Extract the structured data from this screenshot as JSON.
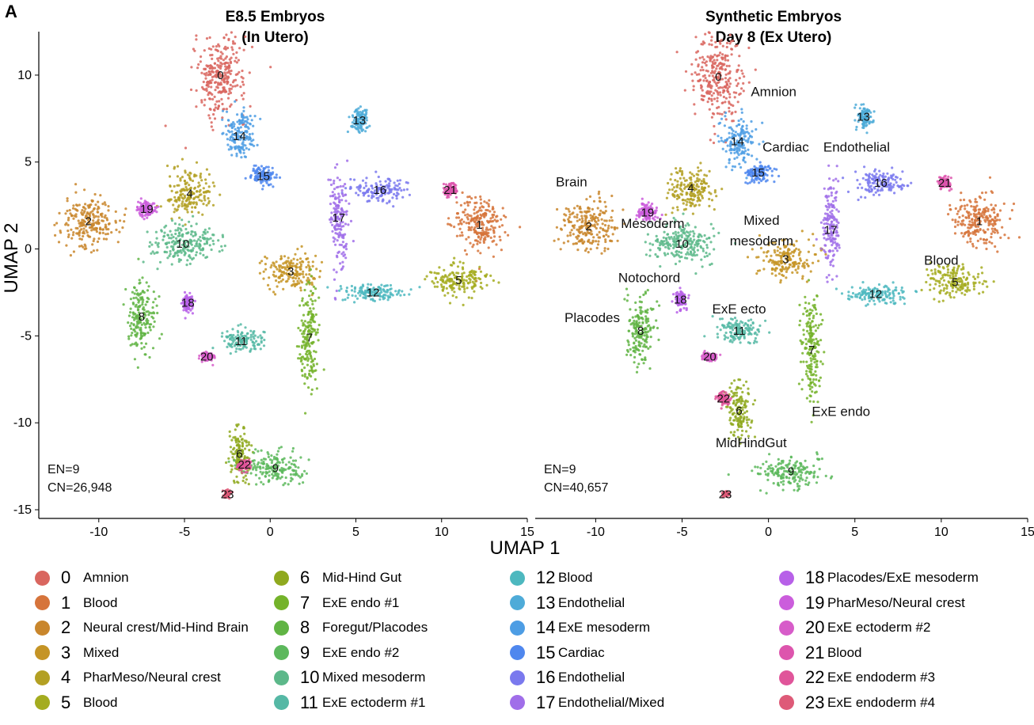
{
  "figure": {
    "panel_letter": "A",
    "shared_xlabel": "UMAP 1",
    "shared_ylabel": "UMAP 2"
  },
  "colors": {
    "0": "#d9665f",
    "1": "#d6743b",
    "2": "#c9862c",
    "3": "#c59425",
    "4": "#b3a023",
    "5": "#a4ac1f",
    "6": "#8fa91f",
    "7": "#74b32a",
    "8": "#60b444",
    "9": "#5cb85c",
    "10": "#5cb88a",
    "11": "#55b8a5",
    "12": "#4db8bf",
    "13": "#4eabd8",
    "14": "#4d9de4",
    "15": "#4f87ee",
    "16": "#7a79ee",
    "17": "#a06ee9",
    "18": "#b760e8",
    "19": "#cb5ddc",
    "20": "#d75cc9",
    "21": "#dd55ad",
    "22": "#e0559a",
    "23": "#de5a78"
  },
  "chart_data": [
    {
      "type": "scatter",
      "title": "E8.5 Embryos",
      "subtitle": "(In Utero)",
      "xlabel": "UMAP 1",
      "ylabel": "UMAP 2",
      "xlim": [
        -13.5,
        15
      ],
      "ylim": [
        -15.5,
        12.5
      ],
      "xticks": [
        -10,
        -5,
        0,
        5,
        10,
        15
      ],
      "yticks": [
        -15,
        -10,
        -5,
        0,
        5,
        10
      ],
      "grid": false,
      "annotations": [
        "EN=9",
        "CN=26,948"
      ],
      "clusters": [
        {
          "id": 0,
          "x": -2.9,
          "y": 10.0
        },
        {
          "id": 1,
          "x": 12.2,
          "y": 1.4
        },
        {
          "id": 2,
          "x": -10.6,
          "y": 1.6
        },
        {
          "id": 3,
          "x": 1.2,
          "y": -1.3
        },
        {
          "id": 4,
          "x": -4.7,
          "y": 3.2
        },
        {
          "id": 5,
          "x": 11.0,
          "y": -1.8
        },
        {
          "id": 6,
          "x": -1.8,
          "y": -11.8
        },
        {
          "id": 7,
          "x": 2.3,
          "y": -5.1
        },
        {
          "id": 8,
          "x": -7.5,
          "y": -3.9
        },
        {
          "id": 9,
          "x": 0.3,
          "y": -12.6
        },
        {
          "id": 10,
          "x": -5.1,
          "y": 0.3
        },
        {
          "id": 11,
          "x": -1.7,
          "y": -5.3
        },
        {
          "id": 12,
          "x": 6.0,
          "y": -2.5
        },
        {
          "id": 13,
          "x": 5.2,
          "y": 7.4
        },
        {
          "id": 14,
          "x": -1.8,
          "y": 6.5
        },
        {
          "id": 15,
          "x": -0.4,
          "y": 4.2
        },
        {
          "id": 16,
          "x": 6.4,
          "y": 3.4
        },
        {
          "id": 17,
          "x": 4.0,
          "y": 1.8
        },
        {
          "id": 18,
          "x": -4.8,
          "y": -3.1
        },
        {
          "id": 19,
          "x": -7.2,
          "y": 2.3
        },
        {
          "id": 20,
          "x": -3.7,
          "y": -6.2
        },
        {
          "id": 21,
          "x": 10.5,
          "y": 3.4
        },
        {
          "id": 22,
          "x": -1.5,
          "y": -12.4
        },
        {
          "id": 23,
          "x": -2.5,
          "y": -14.1
        }
      ],
      "region_labels": []
    },
    {
      "type": "scatter",
      "title": "Synthetic Embryos",
      "subtitle": "Day 8 (Ex Utero)",
      "xlabel": "UMAP 1",
      "ylabel": "UMAP 2",
      "xlim": [
        -13.5,
        15
      ],
      "ylim": [
        -15.5,
        12.5
      ],
      "xticks": [
        -10,
        -5,
        0,
        5,
        10,
        15
      ],
      "yticks": [],
      "grid": false,
      "annotations": [
        "EN=9",
        "CN=40,657"
      ],
      "clusters": [
        {
          "id": 0,
          "x": -2.9,
          "y": 9.9
        },
        {
          "id": 1,
          "x": 12.2,
          "y": 1.6
        },
        {
          "id": 2,
          "x": -10.4,
          "y": 1.3
        },
        {
          "id": 3,
          "x": 1.0,
          "y": -0.6
        },
        {
          "id": 4,
          "x": -4.5,
          "y": 3.5
        },
        {
          "id": 5,
          "x": 10.8,
          "y": -1.9
        },
        {
          "id": 6,
          "x": -1.7,
          "y": -9.3
        },
        {
          "id": 7,
          "x": 2.5,
          "y": -5.8
        },
        {
          "id": 8,
          "x": -7.4,
          "y": -4.7
        },
        {
          "id": 9,
          "x": 1.3,
          "y": -12.8
        },
        {
          "id": 10,
          "x": -5.0,
          "y": 0.3
        },
        {
          "id": 11,
          "x": -1.7,
          "y": -4.7
        },
        {
          "id": 12,
          "x": 6.2,
          "y": -2.6
        },
        {
          "id": 13,
          "x": 5.5,
          "y": 7.6
        },
        {
          "id": 14,
          "x": -1.8,
          "y": 6.2
        },
        {
          "id": 15,
          "x": -0.6,
          "y": 4.4
        },
        {
          "id": 16,
          "x": 6.5,
          "y": 3.8
        },
        {
          "id": 17,
          "x": 3.6,
          "y": 1.1
        },
        {
          "id": 18,
          "x": -5.1,
          "y": -2.9
        },
        {
          "id": 19,
          "x": -7.0,
          "y": 2.1
        },
        {
          "id": 20,
          "x": -3.4,
          "y": -6.2
        },
        {
          "id": 21,
          "x": 10.2,
          "y": 3.8
        },
        {
          "id": 22,
          "x": -2.6,
          "y": -8.6
        },
        {
          "id": 23,
          "x": -2.5,
          "y": -14.1
        }
      ],
      "region_labels": [
        {
          "text": "Amnion",
          "x": 0.3,
          "y": 8.8
        },
        {
          "text": "Cardiac",
          "x": 1.0,
          "y": 5.6
        },
        {
          "text": "Endothelial",
          "x": 5.1,
          "y": 5.6
        },
        {
          "text": "Brain",
          "x": -11.4,
          "y": 3.6
        },
        {
          "text": "Mesoderm",
          "x": -6.7,
          "y": 1.2
        },
        {
          "text": "Mixed",
          "x": -0.4,
          "y": 1.4
        },
        {
          "text": "mesoderm",
          "x": -0.4,
          "y": 0.2
        },
        {
          "text": "Blood",
          "x": 10.0,
          "y": -0.9
        },
        {
          "text": "Notochord",
          "x": -6.9,
          "y": -1.9
        },
        {
          "text": "ExE ecto",
          "x": -1.7,
          "y": -3.7
        },
        {
          "text": "Placodes",
          "x": -10.2,
          "y": -4.2
        },
        {
          "text": "ExE endo",
          "x": 4.2,
          "y": -9.6
        },
        {
          "text": "MidHindGut",
          "x": -1.0,
          "y": -11.4
        }
      ]
    }
  ],
  "legend": [
    [
      {
        "num": "0",
        "label": "Amnion",
        "key": "0"
      },
      {
        "num": "1",
        "label": "Blood",
        "key": "1"
      },
      {
        "num": "2",
        "label": "Neural crest/Mid-Hind Brain",
        "key": "2"
      },
      {
        "num": "3",
        "label": "Mixed",
        "key": "3"
      },
      {
        "num": "4",
        "label": "PharMeso/Neural crest",
        "key": "4"
      },
      {
        "num": "5",
        "label": "Blood",
        "key": "5"
      }
    ],
    [
      {
        "num": "6",
        "label": "Mid-Hind Gut",
        "key": "6"
      },
      {
        "num": "7",
        "label": "ExE endo #1",
        "key": "7"
      },
      {
        "num": "8",
        "label": "Foregut/Placodes",
        "key": "8"
      },
      {
        "num": "9",
        "label": "ExE endo #2",
        "key": "9"
      },
      {
        "num": "10",
        "label": "Mixed mesoderm",
        "key": "10"
      },
      {
        "num": "11",
        "label": "ExE ectoderm #1",
        "key": "11"
      }
    ],
    [
      {
        "num": "12",
        "label": "Blood",
        "key": "12"
      },
      {
        "num": "13",
        "label": "Endothelial",
        "key": "13"
      },
      {
        "num": "14",
        "label": "ExE mesoderm",
        "key": "14"
      },
      {
        "num": "15",
        "label": "Cardiac",
        "key": "15"
      },
      {
        "num": "16",
        "label": "Endothelial",
        "key": "16"
      },
      {
        "num": "17",
        "label": "Endothelial/Mixed",
        "key": "17"
      }
    ],
    [
      {
        "num": "18",
        "label": "Placodes/ExE mesoderm",
        "key": "18"
      },
      {
        "num": "19",
        "label": "PharMeso/Neural crest",
        "key": "19"
      },
      {
        "num": "20",
        "label": "ExE ectoderm #2",
        "key": "20"
      },
      {
        "num": "21",
        "label": "Blood",
        "key": "21"
      },
      {
        "num": "22",
        "label": "ExE endoderm #3",
        "key": "22"
      },
      {
        "num": "23",
        "label": "ExE endoderm #4",
        "key": "23"
      }
    ]
  ]
}
